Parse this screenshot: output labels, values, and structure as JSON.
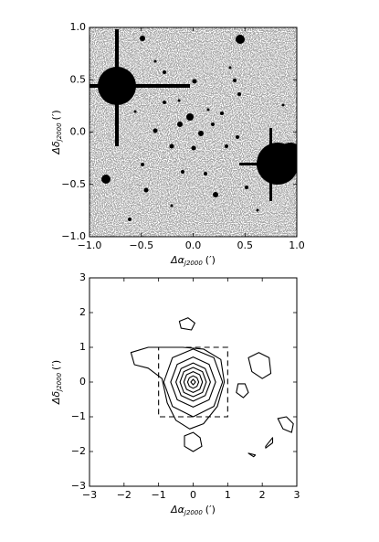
{
  "chart_data": [
    {
      "type": "image",
      "xlabel": {
        "symbol": "Δα",
        "subscript": "J2000",
        "unit": "(′)"
      },
      "ylabel": {
        "symbol": "Δδ",
        "subscript": "J2000",
        "unit": "(′)"
      },
      "xlim": [
        -1,
        1
      ],
      "ylim": [
        -1,
        1
      ],
      "xticks": [
        {
          "value": -1,
          "label": "−1.0"
        },
        {
          "value": -0.5,
          "label": "−0.5"
        },
        {
          "value": 0,
          "label": "0.0"
        },
        {
          "value": 0.5,
          "label": "0.5"
        },
        {
          "value": 1,
          "label": "1.0"
        }
      ],
      "yticks": [
        {
          "value": -1,
          "label": "−1.0"
        },
        {
          "value": -0.5,
          "label": "−0.5"
        },
        {
          "value": 0,
          "label": "0.0"
        },
        {
          "value": 0.5,
          "label": "0.5"
        },
        {
          "value": 1,
          "label": "1.0"
        }
      ]
    },
    {
      "type": "contour",
      "xlabel": {
        "symbol": "Δα",
        "subscript": "J2000",
        "unit": "(′)"
      },
      "ylabel": {
        "symbol": "Δδ",
        "subscript": "J2000",
        "unit": "(′)"
      },
      "xlim": [
        -3,
        3
      ],
      "ylim": [
        -3,
        3
      ],
      "xticks": [
        {
          "value": -3,
          "label": "−3"
        },
        {
          "value": -2,
          "label": "−2"
        },
        {
          "value": -1,
          "label": "−1"
        },
        0,
        1,
        2,
        3
      ],
      "yticks": [
        {
          "value": -3,
          "label": "−3"
        },
        {
          "value": -2,
          "label": "−2"
        },
        {
          "value": -1,
          "label": "−1"
        },
        0,
        1,
        2,
        3
      ],
      "color": "#000000",
      "box": {
        "x": [
          -1,
          1
        ],
        "y": [
          -1,
          1
        ]
      },
      "contours": [
        {
          "x": [
            -1.3,
            -0.3,
            0.3,
            0.8,
            0.9,
            0.7,
            0.3,
            -0.1,
            -0.5,
            -0.75,
            -0.9,
            -1.3,
            -1.7,
            -1.8
          ],
          "y": [
            1.0,
            1.0,
            0.95,
            0.65,
            0.0,
            -0.7,
            -1.2,
            -1.35,
            -1.1,
            -0.6,
            0.1,
            0.4,
            0.5,
            0.85
          ]
        },
        {
          "x": [
            0,
            0.6,
            0.85,
            0.6,
            0,
            -0.6,
            -0.85,
            -0.6
          ],
          "y": [
            0.95,
            0.7,
            0,
            -0.7,
            -1.0,
            -0.7,
            0,
            0.7
          ]
        },
        {
          "x": [
            0,
            0.46,
            0.65,
            0.46,
            0,
            -0.46,
            -0.65,
            -0.46
          ],
          "y": [
            0.72,
            0.51,
            0,
            -0.51,
            -0.72,
            -0.51,
            0,
            0.51
          ]
        },
        {
          "x": [
            0,
            0.35,
            0.5,
            0.35,
            0,
            -0.35,
            -0.5,
            -0.35
          ],
          "y": [
            0.55,
            0.39,
            0,
            -0.39,
            -0.55,
            -0.39,
            0,
            0.39
          ]
        },
        {
          "x": [
            0,
            0.27,
            0.38,
            0.27,
            0,
            -0.27,
            -0.38,
            -0.27
          ],
          "y": [
            0.42,
            0.3,
            0,
            -0.3,
            -0.42,
            -0.3,
            0,
            0.3
          ]
        },
        {
          "x": [
            0,
            0.19,
            0.27,
            0.19,
            0,
            -0.19,
            -0.27,
            -0.19
          ],
          "y": [
            0.3,
            0.21,
            0,
            -0.21,
            -0.3,
            -0.21,
            0,
            0.21
          ]
        },
        {
          "x": [
            0,
            0.11,
            0.16,
            0.11,
            0,
            -0.11,
            -0.16,
            -0.11
          ],
          "y": [
            0.18,
            0.12,
            0,
            -0.12,
            -0.18,
            -0.12,
            0,
            0.12
          ]
        },
        {
          "x": [
            0,
            0.07,
            0,
            -0.07
          ],
          "y": [
            0.08,
            0,
            -0.08,
            0
          ]
        },
        {
          "x": [
            -0.4,
            -0.15,
            0.05,
            -0.05,
            -0.35
          ],
          "y": [
            1.75,
            1.85,
            1.7,
            1.5,
            1.55
          ]
        },
        {
          "x": [
            1.6,
            1.9,
            2.2,
            2.25,
            2.0,
            1.7
          ],
          "y": [
            0.7,
            0.85,
            0.7,
            0.25,
            0.1,
            0.3
          ]
        },
        {
          "x": [
            1.3,
            1.5,
            1.6,
            1.45,
            1.25
          ],
          "y": [
            -0.05,
            -0.05,
            -0.3,
            -0.45,
            -0.3
          ]
        },
        {
          "x": [
            -0.25,
            0,
            0.2,
            0.25,
            0,
            -0.25
          ],
          "y": [
            -1.55,
            -1.45,
            -1.6,
            -1.85,
            -2.0,
            -1.85
          ]
        },
        {
          "x": [
            2.45,
            2.7,
            2.9,
            2.85,
            2.6
          ],
          "y": [
            -1.05,
            -1.0,
            -1.2,
            -1.45,
            -1.35
          ]
        },
        {
          "x": [
            2.1,
            2.3,
            2.3,
            2.1
          ],
          "y": [
            -1.85,
            -1.6,
            -1.75,
            -1.9
          ]
        },
        {
          "x": [
            1.6,
            1.8,
            1.75
          ],
          "y": [
            -2.05,
            -2.1,
            -2.15
          ]
        }
      ]
    }
  ]
}
